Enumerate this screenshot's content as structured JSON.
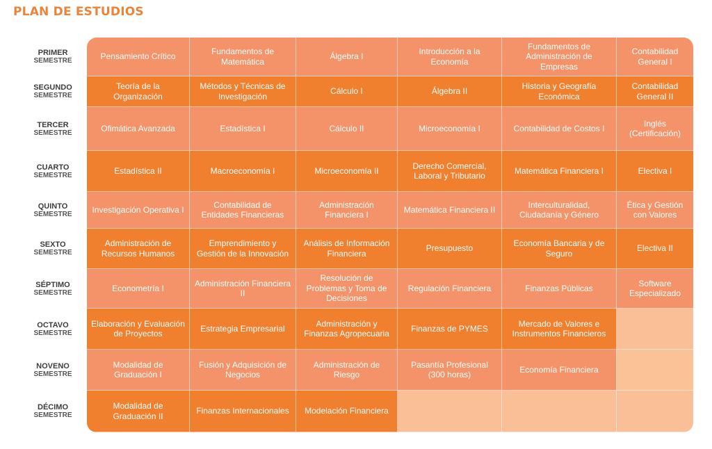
{
  "title": "PLAN DE ESTUDIOS",
  "colors": {
    "accent": "#e8843c",
    "light_row": "#f4936a",
    "dark_row": "#f07f2e",
    "empty_cell": "#fbbf98"
  },
  "semesters": [
    {
      "line1": "PRIMER",
      "line2": "SEMESTRE",
      "style": "light",
      "courses": [
        "Pensamiento Crítico",
        "Fundamentos de Matemática",
        "Álgebra I",
        "Introducción a la Economía",
        "Fundamentos de Administración de Empresas",
        "Contabilidad General I"
      ]
    },
    {
      "line1": "SEGUNDO",
      "line2": "SEMESTRE",
      "style": "dark",
      "courses": [
        "Teoría de la Organización",
        "Métodos y Técnicas de Investigación",
        "Cálculo I",
        "Álgebra II",
        "Historia y Geografía Económica",
        "Contabilidad General II"
      ]
    },
    {
      "line1": "TERCER",
      "line2": "SEMESTRE",
      "style": "light",
      "courses": [
        "Ofimática Avanzada",
        "Estadística I",
        "Cálculo II",
        "Microeconomía I",
        "Contabilidad de Costos I",
        "Inglés (Certificación)"
      ]
    },
    {
      "line1": "CUARTO",
      "line2": "SEMESTRE",
      "style": "dark",
      "courses": [
        "Estadística II",
        "Macroeconomía I",
        "Microeconomía II",
        "Derecho Comercial, Laboral y Tributario",
        "Matemática Financiera I",
        "Electiva I"
      ]
    },
    {
      "line1": "QUINTO",
      "line2": "SEMESTRE",
      "style": "light",
      "courses": [
        "Investigación Operativa I",
        "Contabilidad de Entidades Financieras",
        "Administración Financiera I",
        "Matemática Financiera II",
        "Interculturalidad, Ciudadanía y Género",
        "Ética y Gestión con Valores"
      ]
    },
    {
      "line1": "SEXTO",
      "line2": "SEMESTRE",
      "style": "dark",
      "courses": [
        "Administración de Recursos Humanos",
        "Emprendimiento y Gestión de la Innovación",
        "Análisis de Información Financiera",
        "Presupuesto",
        "Economía Bancaria y de Seguro",
        "Electiva II"
      ]
    },
    {
      "line1": "SÉPTIMO",
      "line2": "SEMESTRE",
      "style": "light",
      "courses": [
        "Econometría I",
        "Administración Financiera II",
        "Resolución de Problemas y Toma de Decisiones",
        "Regulación Financiera",
        "Finanzas Públicas",
        "Software Especializado"
      ]
    },
    {
      "line1": "OCTAVO",
      "line2": "SEMESTRE",
      "style": "dark",
      "courses": [
        "Elaboración y Evaluación de Proyectos",
        "Estrategia Empresarial",
        "Administración y Finanzas Agropecuaria",
        "Finanzas de PYMES",
        "Mercado de Valores e Instrumentos Financieros",
        ""
      ]
    },
    {
      "line1": "NOVENO",
      "line2": "SEMESTRE",
      "style": "light",
      "courses": [
        "Modalidad de Graduación I",
        "Fusión y Adquisición de Negocios",
        "Administración de Riesgo",
        "Pasantía Profesional (300 horas)",
        "Economía Financiera",
        ""
      ]
    },
    {
      "line1": "DÉCIMO",
      "line2": "SEMESTRE",
      "style": "dark",
      "courses": [
        "Modalidad de Graduación II",
        "Finanzas Internacionales",
        "Modelación Financiera",
        "",
        "",
        ""
      ]
    }
  ]
}
